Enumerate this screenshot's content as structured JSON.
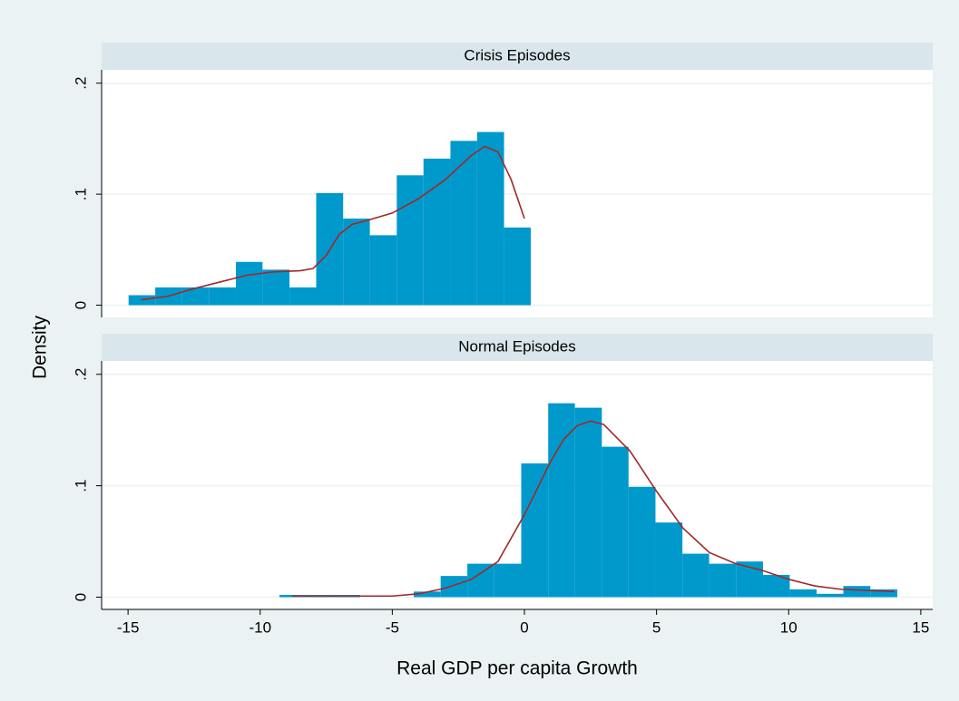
{
  "chart_data": [
    {
      "type": "histogram",
      "title": "Crisis Episodes",
      "ylabel": "Density",
      "bins": [
        -14.98,
        -13.97,
        -12.95,
        -11.94,
        -10.92,
        -9.91,
        -8.89,
        -7.88,
        -6.86,
        -5.85,
        -4.83,
        -3.82,
        -2.8,
        -1.79,
        -0.77,
        0.24
      ],
      "values": [
        0.009,
        0.016,
        0.016,
        0.016,
        0.039,
        0.032,
        0.016,
        0.101,
        0.078,
        0.063,
        0.117,
        0.132,
        0.148,
        0.156,
        0.07
      ],
      "color": "#0099cc",
      "series": [
        {
          "color": "#a0282c",
          "x": [
            -14.5,
            -13.5,
            -12.5,
            -11.5,
            -10.5,
            -9.5,
            -8.5,
            -8,
            -7.5,
            -7,
            -6.5,
            -6,
            -5,
            -4,
            -3,
            -2,
            -1.5,
            -1,
            -0.5,
            0
          ],
          "values": [
            0.005,
            0.008,
            0.015,
            0.021,
            0.027,
            0.03,
            0.031,
            0.033,
            0.045,
            0.064,
            0.073,
            0.076,
            0.083,
            0.096,
            0.113,
            0.135,
            0.143,
            0.138,
            0.113,
            0.078
          ]
        }
      ],
      "xlim": [
        -16,
        15.45
      ],
      "ylim": [
        -0.011,
        0.212
      ],
      "yticks": [
        0,
        {
          "value": 0.1,
          "label": ".1"
        },
        {
          "value": 0.2,
          "label": ".2"
        }
      ],
      "grid": true
    },
    {
      "type": "histogram",
      "title": "Normal Episodes",
      "xlabel": "Real GDP per capita Growth",
      "bins": [
        -9.27,
        -8.25,
        -7.24,
        -6.22,
        -5.2,
        -4.19,
        -3.17,
        -2.16,
        -1.14,
        -0.12,
        0.9,
        1.91,
        2.93,
        3.94,
        4.96,
        5.98,
        6.99,
        8.01,
        9.03,
        10.04,
        11.06,
        12.07,
        13.09,
        14.11
      ],
      "values": [
        0.002,
        0.002,
        0.002,
        0,
        0,
        0.005,
        0.019,
        0.03,
        0.03,
        0.12,
        0.174,
        0.17,
        0.135,
        0.099,
        0.067,
        0.039,
        0.03,
        0.032,
        0.02,
        0.007,
        0.003,
        0.01,
        0.007
      ],
      "color": "#0099cc",
      "series": [
        {
          "color": "#a0282c",
          "x": [
            -8.8,
            -6,
            -5,
            -4,
            -3,
            -2,
            -1,
            0,
            1,
            1.5,
            2,
            2.5,
            3,
            4,
            5,
            6,
            7,
            8,
            9,
            10,
            11,
            12,
            13,
            14
          ],
          "values": [
            0.001,
            0.001,
            0.001,
            0.003,
            0.008,
            0.016,
            0.032,
            0.074,
            0.122,
            0.142,
            0.154,
            0.158,
            0.155,
            0.131,
            0.095,
            0.062,
            0.04,
            0.03,
            0.024,
            0.016,
            0.01,
            0.007,
            0.006,
            0.005
          ]
        }
      ],
      "xlim": [
        -16,
        15.45
      ],
      "ylim": [
        -0.011,
        0.212
      ],
      "xticks": [
        -15,
        -10,
        -5,
        0,
        5,
        10,
        15
      ],
      "yticks": [
        0,
        {
          "value": 0.1,
          "label": ".1"
        },
        {
          "value": 0.2,
          "label": ".2"
        }
      ],
      "grid": true
    }
  ]
}
